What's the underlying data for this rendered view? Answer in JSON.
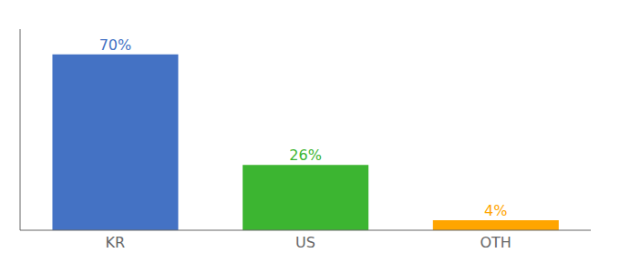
{
  "chart_data": {
    "type": "bar",
    "categories": [
      "KR",
      "US",
      "OTH"
    ],
    "values": [
      70,
      26,
      4
    ],
    "value_labels": [
      "70%",
      "26%",
      "4%"
    ],
    "colors": [
      "#4472C4",
      "#3CB531",
      "#FFA500"
    ],
    "ylim": [
      0,
      80
    ],
    "data_labels": true,
    "tick_labels": "x",
    "grid": false
  }
}
